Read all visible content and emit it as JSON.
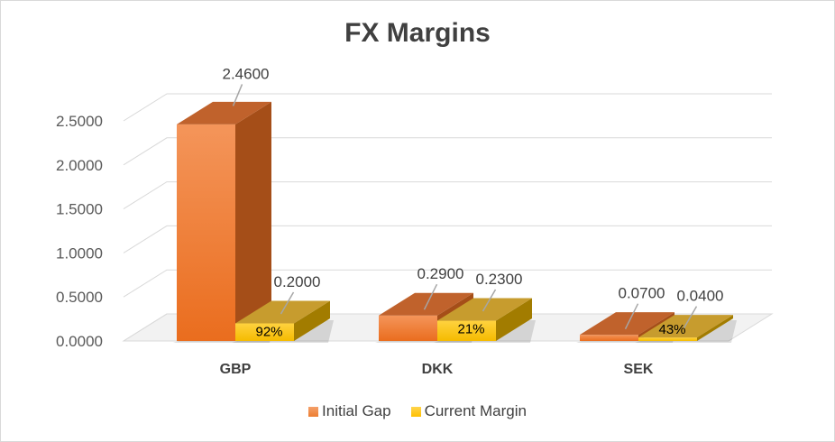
{
  "chart_data": {
    "type": "bar",
    "title": "FX Margins",
    "categories": [
      "GBP",
      "DKK",
      "SEK"
    ],
    "series": [
      {
        "name": "Initial Gap",
        "values": [
          2.46,
          0.29,
          0.07
        ],
        "labels": [
          "2.4600",
          "0.2900",
          "0.0700"
        ],
        "color": "#ED7D31"
      },
      {
        "name": "Current Margin",
        "values": [
          0.2,
          0.23,
          0.04
        ],
        "labels": [
          "0.2000",
          "0.2300",
          "0.0400"
        ],
        "inner_labels": [
          "92%",
          "21%",
          "43%"
        ],
        "color": "#FFC000"
      }
    ],
    "y_ticks": [
      "0.0000",
      "0.5000",
      "1.0000",
      "1.5000",
      "2.0000",
      "2.5000"
    ],
    "ylim": [
      0,
      2.5
    ],
    "grid": true,
    "legend": "bottom"
  }
}
